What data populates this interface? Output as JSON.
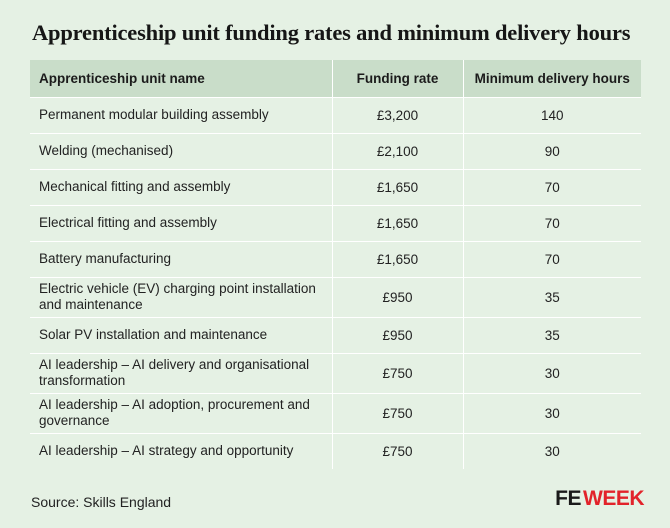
{
  "title": "Apprenticeship unit funding rates and minimum delivery hours",
  "table": {
    "headers": [
      "Apprenticeship unit name",
      "Funding rate",
      "Minimum delivery hours"
    ],
    "rows": [
      {
        "name": "Permanent modular building assembly",
        "rate": "£3,200",
        "hours": "140"
      },
      {
        "name": "Welding (mechanised)",
        "rate": "£2,100",
        "hours": "90"
      },
      {
        "name": "Mechanical fitting and assembly",
        "rate": "£1,650",
        "hours": "70"
      },
      {
        "name": "Electrical fitting and assembly",
        "rate": "£1,650",
        "hours": "70"
      },
      {
        "name": "Battery manufacturing",
        "rate": "£1,650",
        "hours": "70"
      },
      {
        "name": "Electric vehicle (EV) charging point installation and maintenance",
        "rate": "£950",
        "hours": "35"
      },
      {
        "name": "Solar PV installation and maintenance",
        "rate": "£950",
        "hours": "35"
      },
      {
        "name": "AI leadership – AI delivery and organisational transformation",
        "rate": "£750",
        "hours": "30"
      },
      {
        "name": "AI leadership – AI adoption, procurement and governance",
        "rate": "£750",
        "hours": "30"
      },
      {
        "name": "AI leadership – AI strategy and opportunity",
        "rate": "£750",
        "hours": "30"
      }
    ]
  },
  "source": "Source: Skills England",
  "logo": {
    "part1": "FE",
    "part2": "WEEK"
  },
  "colors": {
    "background": "#e5f1e4",
    "header": "#c9ddc9",
    "logo_accent": "#e2232a"
  }
}
